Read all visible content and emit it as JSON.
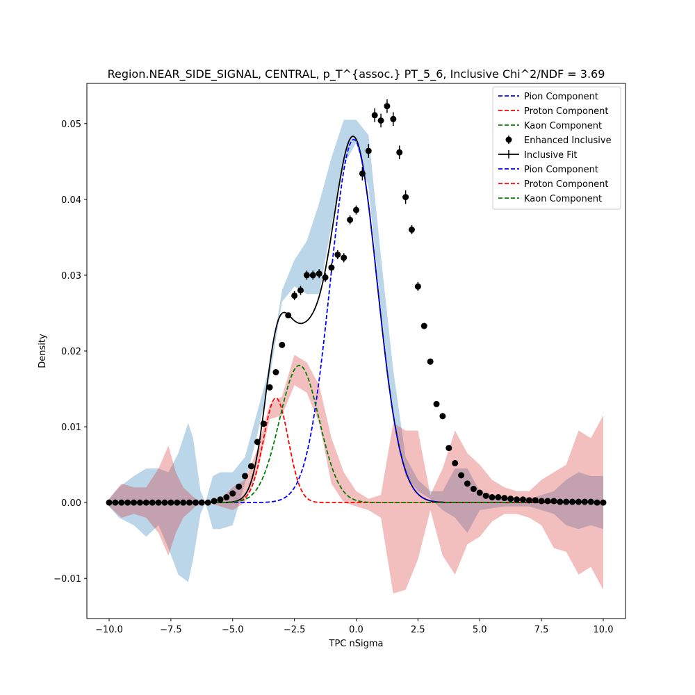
{
  "chart_data": {
    "type": "line",
    "title": "Region.NEAR_SIDE_SIGNAL, CENTRAL, p_T^{assoc.} PT_5_6, Inclusive Chi^2/NDF = 3.69",
    "xlabel": "TPC nSigma",
    "ylabel": "Density",
    "xlim": [
      -10.9,
      10.9
    ],
    "ylim": [
      -0.0153,
      0.0553
    ],
    "x_ticks": [
      -10,
      -7.5,
      -5,
      -2.5,
      0,
      2.5,
      5,
      7.5,
      10
    ],
    "x_tick_labels": [
      "−10.0",
      "−7.5",
      "−5.0",
      "−2.5",
      "0.0",
      "2.5",
      "5.0",
      "7.5",
      "10.0"
    ],
    "y_ticks": [
      -0.01,
      0,
      0.01,
      0.02,
      0.03,
      0.04,
      0.05
    ],
    "y_tick_labels": [
      "−0.01",
      "0.00",
      "0.01",
      "0.02",
      "0.03",
      "0.04",
      "0.05"
    ],
    "grid": false,
    "legend_position": "top-right",
    "colors": {
      "pion": "#0000ff",
      "proton": "#ff0000",
      "kaon": "#008000",
      "data": "#000000",
      "band_blue": "#1f77b4",
      "band_red": "#d62728"
    },
    "legend": [
      {
        "label": "Pion Component",
        "style": "dash",
        "color": "#0000ff"
      },
      {
        "label": "Proton Component",
        "style": "dash",
        "color": "#ff0000"
      },
      {
        "label": "Kaon Component",
        "style": "dash",
        "color": "#008000"
      },
      {
        "label": "Enhanced Inclusive",
        "style": "errorbar",
        "color": "#000000"
      },
      {
        "label": "Inclusive Fit",
        "style": "solid-cross",
        "color": "#000000"
      },
      {
        "label": "Pion Component",
        "style": "dash",
        "color": "#0000ff"
      },
      {
        "label": "Proton Component",
        "style": "dash",
        "color": "#ff0000"
      },
      {
        "label": "Kaon Component",
        "style": "dash",
        "color": "#008000"
      }
    ],
    "components": {
      "pion": {
        "amplitude": 0.0479,
        "mean": -0.1,
        "sigma": 0.95
      },
      "kaon": {
        "amplitude": 0.0181,
        "mean": -2.3,
        "sigma": 0.8
      },
      "proton": {
        "amplitude": 0.0138,
        "mean": -3.25,
        "sigma": 0.5
      }
    },
    "blue_band": [
      [
        -10.0,
        -0.0005,
        0.0005
      ],
      [
        -9.6,
        -0.002,
        0.002
      ],
      [
        -9.0,
        -0.003,
        0.0035
      ],
      [
        -8.5,
        -0.0045,
        0.0045
      ],
      [
        -8.0,
        -0.003,
        0.0045
      ],
      [
        -7.6,
        -0.006,
        0.004
      ],
      [
        -7.2,
        -0.0095,
        0.0065
      ],
      [
        -6.8,
        -0.0105,
        0.0105
      ],
      [
        -6.6,
        -0.0075,
        0.0085
      ],
      [
        -6.3,
        -0.0015,
        0.0015
      ],
      [
        -6.1,
        0.0,
        0.0
      ],
      [
        -5.8,
        -0.0035,
        0.0035
      ],
      [
        -5.5,
        -0.0035,
        0.004
      ],
      [
        -5.0,
        -0.003,
        0.004
      ],
      [
        -4.5,
        0.0025,
        0.006
      ],
      [
        -4.0,
        0.009,
        0.012
      ],
      [
        -3.5,
        0.0165,
        0.018
      ],
      [
        -3.0,
        0.0265,
        0.028
      ],
      [
        -2.5,
        0.0285,
        0.032
      ],
      [
        -2.0,
        0.0275,
        0.0345
      ],
      [
        -1.5,
        0.0275,
        0.0395
      ],
      [
        -1.0,
        0.0365,
        0.0455
      ],
      [
        -0.5,
        0.0445,
        0.0505
      ],
      [
        0.0,
        0.0475,
        0.0505
      ],
      [
        0.5,
        0.0415,
        0.0485
      ],
      [
        1.0,
        0.0255,
        0.0325
      ],
      [
        1.5,
        0.011,
        0.0175
      ],
      [
        2.0,
        0.0035,
        0.006
      ],
      [
        2.5,
        0.0015,
        0.003
      ],
      [
        3.0,
        0.0005,
        0.0015
      ],
      [
        3.5,
        -0.001,
        0.0015
      ],
      [
        4.0,
        -0.002,
        0.0045
      ],
      [
        4.5,
        -0.004,
        0.0045
      ],
      [
        5.0,
        -0.001,
        0.0015
      ],
      [
        6.0,
        -0.0005,
        0.0005
      ],
      [
        7.0,
        -0.0005,
        0.0005
      ],
      [
        8.0,
        -0.0015,
        0.0015
      ],
      [
        8.5,
        -0.003,
        0.003
      ],
      [
        9.0,
        -0.0035,
        0.004
      ],
      [
        9.5,
        -0.003,
        0.0035
      ],
      [
        10.0,
        -0.0035,
        0.0035
      ]
    ],
    "red_band": [
      [
        -10.0,
        -0.0005,
        0.0005
      ],
      [
        -9.5,
        -0.002,
        0.0025
      ],
      [
        -9.0,
        -0.0015,
        0.002
      ],
      [
        -8.5,
        -0.002,
        0.002
      ],
      [
        -8.0,
        -0.004,
        0.0045
      ],
      [
        -7.6,
        -0.007,
        0.0075
      ],
      [
        -7.3,
        -0.004,
        0.004
      ],
      [
        -7.0,
        -0.002,
        0.002
      ],
      [
        -6.5,
        -0.0005,
        0.0005
      ],
      [
        -6.0,
        0.0,
        0.0
      ],
      [
        -5.5,
        -0.0005,
        0.0005
      ],
      [
        -5.0,
        -0.001,
        0.002
      ],
      [
        -4.5,
        0.0,
        0.003
      ],
      [
        -4.0,
        0.004,
        0.007
      ],
      [
        -3.5,
        0.011,
        0.013
      ],
      [
        -3.0,
        0.0115,
        0.014
      ],
      [
        -2.5,
        0.0155,
        0.0195
      ],
      [
        -2.0,
        0.0145,
        0.0185
      ],
      [
        -1.5,
        0.0105,
        0.0155
      ],
      [
        -1.0,
        0.0025,
        0.0085
      ],
      [
        -0.5,
        0.0,
        0.004
      ],
      [
        0.0,
        -0.0005,
        0.0015
      ],
      [
        0.5,
        -0.001,
        0.0005
      ],
      [
        1.0,
        -0.002,
        0.001
      ],
      [
        1.5,
        -0.012,
        0.0105
      ],
      [
        2.0,
        -0.0115,
        0.0095
      ],
      [
        2.5,
        -0.0075,
        0.0095
      ],
      [
        3.0,
        -0.001,
        0.001
      ],
      [
        3.5,
        -0.007,
        0.0045
      ],
      [
        4.0,
        -0.0095,
        0.0095
      ],
      [
        4.5,
        -0.0055,
        0.0065
      ],
      [
        5.0,
        -0.0045,
        0.005
      ],
      [
        5.5,
        -0.0025,
        0.003
      ],
      [
        6.0,
        -0.0015,
        0.002
      ],
      [
        6.5,
        -0.0015,
        0.0015
      ],
      [
        7.0,
        -0.002,
        0.0015
      ],
      [
        7.5,
        -0.003,
        0.003
      ],
      [
        8.0,
        -0.006,
        0.004
      ],
      [
        8.5,
        -0.0065,
        0.005
      ],
      [
        9.0,
        -0.0095,
        0.0095
      ],
      [
        9.5,
        -0.0085,
        0.0085
      ],
      [
        10.0,
        -0.0115,
        0.0115
      ]
    ],
    "data_points": {
      "x": [
        -10.0,
        -9.75,
        -9.5,
        -9.25,
        -9.0,
        -8.75,
        -8.5,
        -8.25,
        -8.0,
        -7.75,
        -7.5,
        -7.25,
        -7.0,
        -6.75,
        -6.5,
        -6.25,
        -6.0,
        -5.75,
        -5.5,
        -5.25,
        -5.0,
        -4.75,
        -4.5,
        -4.25,
        -4.0,
        -3.75,
        -3.5,
        -3.25,
        -3.0,
        -2.75,
        -2.5,
        -2.25,
        -2.0,
        -1.75,
        -1.5,
        -1.25,
        -1.0,
        -0.75,
        -0.5,
        -0.25,
        0.0,
        0.25,
        0.5,
        0.75,
        1.0,
        1.25,
        1.5,
        1.75,
        2.0,
        2.25,
        2.5,
        2.75,
        3.0,
        3.25,
        3.5,
        3.75,
        4.0,
        4.25,
        4.5,
        4.75,
        5.0,
        5.25,
        5.5,
        5.75,
        6.0,
        6.25,
        6.5,
        6.75,
        7.0,
        7.25,
        7.5,
        7.75,
        8.0,
        8.25,
        8.5,
        8.75,
        9.0,
        9.25,
        9.5,
        9.75,
        10.0
      ],
      "y": [
        0.0,
        0.0,
        0.0,
        0.0,
        0.0,
        0.0,
        0.0,
        0.0,
        0.0,
        0.0,
        0.0,
        0.0,
        0.0,
        0.0,
        0.0,
        0.0,
        0.0,
        0.0002,
        0.0004,
        0.0007,
        0.0012,
        0.0021,
        0.0035,
        0.0048,
        0.008,
        0.0104,
        0.0152,
        0.0172,
        0.0208,
        0.0247,
        0.0273,
        0.028,
        0.03,
        0.03,
        0.0302,
        0.0297,
        0.031,
        0.0327,
        0.0323,
        0.0373,
        0.0386,
        0.0434,
        0.0464,
        0.0511,
        0.0504,
        0.0523,
        0.0506,
        0.0462,
        0.0403,
        0.036,
        0.0285,
        0.0233,
        0.0186,
        0.013,
        0.0114,
        0.0072,
        0.0052,
        0.0036,
        0.0025,
        0.0018,
        0.0013,
        0.0009,
        0.0007,
        0.0007,
        0.0006,
        0.0005,
        0.0004,
        0.0004,
        0.0003,
        0.0003,
        0.0002,
        0.0002,
        0.0002,
        0.0001,
        0.0001,
        0.0001,
        0.0001,
        0.0001,
        0.0001,
        0.0,
        0.0
      ]
    }
  }
}
